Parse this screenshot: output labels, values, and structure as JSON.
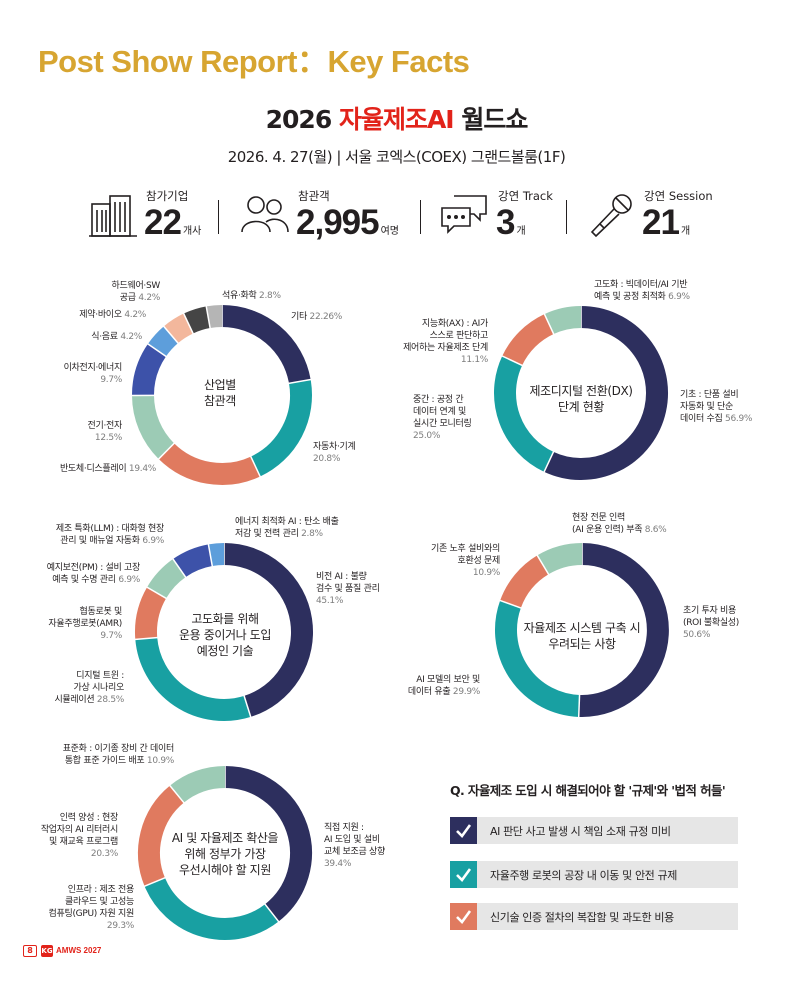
{
  "page_title": "Post Show Report：Key Facts",
  "event": {
    "year": "2026",
    "name": "자율제조AI",
    "suffix": "월드쇼",
    "subtitle": "2026. 4. 27(월) | 서울 코엑스(COEX) 그랜드볼룸(1F)"
  },
  "stats": [
    {
      "label": "참가기업",
      "value": "22",
      "unit": "개사",
      "icon": "buildings-icon"
    },
    {
      "label": "참관객",
      "value": "2,995",
      "unit": "여명",
      "icon": "people-icon"
    },
    {
      "label": "강연 Track",
      "value": "3",
      "unit": "개",
      "icon": "chat-bubbles-icon"
    },
    {
      "label": "강연 Session",
      "value": "21",
      "unit": "개",
      "icon": "microphone-icon"
    }
  ],
  "colors": {
    "navy": "#2d2f5e",
    "teal": "#18a0a2",
    "salmon": "#e07a5f",
    "mint": "#9ccbb5",
    "blue": "#3d52a9",
    "lightblue": "#5d9edb",
    "peach": "#f3b79c",
    "dark": "#454545",
    "gray": "#b5b5b5",
    "gold": "#d7a531",
    "red": "#e2231a"
  },
  "chart_data": [
    {
      "type": "pie",
      "title": "산업별 참관객",
      "slices": [
        {
          "label": "기타",
          "value": 22.26,
          "color": "#2d2f5e"
        },
        {
          "label": "자동차·기계",
          "value": 20.8,
          "color": "#18a0a2"
        },
        {
          "label": "반도체·디스플레이",
          "value": 19.4,
          "color": "#e07a5f"
        },
        {
          "label": "전기·전자",
          "value": 12.5,
          "color": "#9ccbb5"
        },
        {
          "label": "이차전지·에너지",
          "value": 9.7,
          "color": "#3d52a9"
        },
        {
          "label": "식·음료",
          "value": 4.2,
          "color": "#5d9edb"
        },
        {
          "label": "제약·바이오",
          "value": 4.2,
          "color": "#f3b79c"
        },
        {
          "label": "하드웨어·SW 공급",
          "value": 4.2,
          "color": "#454545"
        },
        {
          "label": "석유·화학",
          "value": 2.8,
          "color": "#b5b5b5"
        }
      ]
    },
    {
      "type": "pie",
      "title": "제조디지털 전환(DX) 단계 현황",
      "slices": [
        {
          "label": "기초 : 단품 설비 자동화 및 단순 데이터 수집",
          "value": 56.9,
          "color": "#2d2f5e"
        },
        {
          "label": "중간 : 공정 간 데이터 연계 및 실시간 모니터링",
          "value": 25.0,
          "color": "#18a0a2"
        },
        {
          "label": "지능화(AX) : AI가 스스로 판단하고 제어하는 자율제조 단계",
          "value": 11.1,
          "color": "#e07a5f"
        },
        {
          "label": "고도화 : 빅데이터/AI 기반 예측 및 공정 최적화",
          "value": 6.9,
          "color": "#9ccbb5"
        }
      ]
    },
    {
      "type": "pie",
      "title": "고도화를 위해 운용 중이거나 도입 예정인 기술",
      "slices": [
        {
          "label": "비전 AI : 불량 검수 및 품질 관리",
          "value": 45.1,
          "color": "#2d2f5e"
        },
        {
          "label": "디지털 트윈 : 가상 시나리오 시뮬레이션",
          "value": 28.5,
          "color": "#18a0a2"
        },
        {
          "label": "협동로봇 및 자율주행로봇(AMR)",
          "value": 9.7,
          "color": "#e07a5f"
        },
        {
          "label": "예지보전(PM) : 설비 고장 예측 및 수명 관리",
          "value": 6.9,
          "color": "#9ccbb5"
        },
        {
          "label": "제조 특화(LLM) : 대화형 현장 관리 및 매뉴얼 자동화",
          "value": 6.9,
          "color": "#3d52a9"
        },
        {
          "label": "에너지 최적화 AI : 탄소 배출 저감 및 전력 관리",
          "value": 2.8,
          "color": "#5d9edb"
        }
      ]
    },
    {
      "type": "pie",
      "title": "자율제조 시스템 구축 시 우려되는 사항",
      "slices": [
        {
          "label": "초기 투자 비용 (ROI 불확실성)",
          "value": 50.6,
          "color": "#2d2f5e"
        },
        {
          "label": "AI 모델의 보안 및 데이터 유출",
          "value": 29.9,
          "color": "#18a0a2"
        },
        {
          "label": "기존 노후 설비와의 호환성 문제",
          "value": 10.9,
          "color": "#e07a5f"
        },
        {
          "label": "현장 전문 인력 (AI 운용 인력) 부족",
          "value": 8.6,
          "color": "#9ccbb5"
        }
      ]
    },
    {
      "type": "pie",
      "title": "AI 및 자율제조 확산을 위해 정부가 가장 우선시해야 할 지원",
      "slices": [
        {
          "label": "직접 지원 : AI 도입 및 설비 교체 보조금 상향",
          "value": 39.4,
          "color": "#2d2f5e"
        },
        {
          "label": "인프라 : 제조 전용 클라우드 및 고성능 컴퓨팅(GPU) 자원 지원",
          "value": 29.3,
          "color": "#18a0a2"
        },
        {
          "label": "인력 양성 : 현장 작업자의 AI 리터러시 및 재교육 프로그램",
          "value": 20.3,
          "color": "#e07a5f"
        },
        {
          "label": "표준화 : 이기종 장비 간 데이터 통합 표준 가이드 배포",
          "value": 10.9,
          "color": "#9ccbb5"
        }
      ]
    }
  ],
  "labels": {
    "c1": {
      "center": [
        "산업별",
        "참관객"
      ],
      "items": [
        {
          "lines": [
            "기타"
          ],
          "pct": "22.26%"
        },
        {
          "lines": [
            "자동차·기계"
          ],
          "pct": "20.8%"
        },
        {
          "lines": [
            "반도체·디스플레이"
          ],
          "pct": "19.4%"
        },
        {
          "lines": [
            "전기·전자"
          ],
          "pct": "12.5%"
        },
        {
          "lines": [
            "이차전지·에너지"
          ],
          "pct": "9.7%"
        },
        {
          "lines": [
            "식·음료"
          ],
          "pct": "4.2%"
        },
        {
          "lines": [
            "제약·바이오"
          ],
          "pct": "4.2%"
        },
        {
          "lines": [
            "하드웨어·SW",
            "공급"
          ],
          "pct": "4.2%"
        },
        {
          "lines": [
            "석유·화학"
          ],
          "pct": "2.8%"
        }
      ]
    },
    "c2": {
      "center": [
        "제조디지털 전환(DX)",
        "단계 현황"
      ],
      "items": [
        {
          "lines": [
            "기초 : 단품 설비",
            "자동화 및 단순",
            "데이터 수집"
          ],
          "pct": "56.9%"
        },
        {
          "lines": [
            "중간 : 공정 간",
            "데이터 연계 및",
            "실시간 모니터링"
          ],
          "pct": "25.0%"
        },
        {
          "lines": [
            "지능화(AX) : AI가",
            "스스로 판단하고",
            "제어하는 자율제조 단계"
          ],
          "pct": "11.1%"
        },
        {
          "lines": [
            "고도화 : 빅데이터/AI 기반",
            "예측 및 공정 최적화"
          ],
          "pct": "6.9%"
        }
      ]
    },
    "c3": {
      "center": [
        "고도화를 위해",
        "운용 중이거나 도입",
        "예정인 기술"
      ],
      "items": [
        {
          "lines": [
            "비전 AI : 불량",
            "검수 및 품질 관리"
          ],
          "pct": "45.1%"
        },
        {
          "lines": [
            "디지털 트윈 :",
            "가상 시나리오",
            "시뮬레이션"
          ],
          "pct": "28.5%"
        },
        {
          "lines": [
            "협동로봇 및",
            "자율주행로봇(AMR)"
          ],
          "pct": "9.7%"
        },
        {
          "lines": [
            "예지보전(PM) : 설비 고장",
            "예측 및 수명 관리"
          ],
          "pct": "6.9%"
        },
        {
          "lines": [
            "제조 특화(LLM) : 대화형 현장",
            "관리 및 매뉴얼 자동화"
          ],
          "pct": "6.9%"
        },
        {
          "lines": [
            "에너지 최적화 AI : 탄소 배출",
            "저감 및 전력 관리"
          ],
          "pct": "2.8%"
        }
      ]
    },
    "c4": {
      "center": [
        "자율제조 시스템 구축 시",
        "우려되는 사항"
      ],
      "items": [
        {
          "lines": [
            "초기 투자 비용",
            "(ROI 불확실성)"
          ],
          "pct": "50.6%"
        },
        {
          "lines": [
            "AI 모델의 보안 및",
            "데이터 유출"
          ],
          "pct": "29.9%"
        },
        {
          "lines": [
            "기존 노후 설비와의",
            "호환성 문제"
          ],
          "pct": "10.9%"
        },
        {
          "lines": [
            "현장 전문 인력",
            "(AI 운용 인력) 부족"
          ],
          "pct": "8.6%"
        }
      ]
    },
    "c5": {
      "center": [
        "AI 및 자율제조 확산을",
        "위해 정부가 가장",
        "우선시해야 할 지원"
      ],
      "items": [
        {
          "lines": [
            "직접 지원 :",
            "AI 도입 및 설비",
            "교체 보조금 상향"
          ],
          "pct": "39.4%"
        },
        {
          "lines": [
            "인프라 : 제조 전용",
            "클라우드 및 고성능",
            "컴퓨팅(GPU) 자원 지원"
          ],
          "pct": "29.3%"
        },
        {
          "lines": [
            "인력 양성 : 현장",
            "작업자의 AI 리터러시",
            "및 재교육 프로그램"
          ],
          "pct": "20.3%"
        },
        {
          "lines": [
            "표준화 : 이기종 장비 간 데이터",
            "통합 표준 가이드 배포"
          ],
          "pct": "10.9%"
        }
      ]
    }
  },
  "question": {
    "title": "Q. 자율제조 도입 시 해결되어야 할 '규제'와 '법적 허들'",
    "items": [
      {
        "text": "AI 판단 사고 발생 시 책임 소재 규정 미비",
        "color": "#2d2f5e"
      },
      {
        "text": "자율주행 로봇의 공장 내 이동 및 안전 규제",
        "color": "#18a0a2"
      },
      {
        "text": "신기술 인증 절차의 복잡함 및 과도한 비용",
        "color": "#e07a5f"
      }
    ]
  },
  "footer": {
    "page": "8",
    "logo": "KG",
    "brand": "AMWS 2027"
  }
}
